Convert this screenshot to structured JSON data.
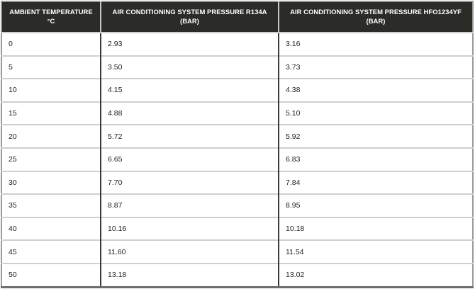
{
  "table": {
    "headers": [
      "AMBIENT TEMPERATURE °C",
      "AIR CONDITIONING SYSTEM PRESSURE R134A (BAR)",
      "AIR CONDITIONING SYSTEM PRESSURE HFO1234YF (BAR)"
    ],
    "rows": [
      [
        "0",
        "2.93",
        "3.16"
      ],
      [
        "5",
        "3.50",
        "3.73"
      ],
      [
        "10",
        "4.15",
        "4.38"
      ],
      [
        "15",
        "4.88",
        "5.10"
      ],
      [
        "20",
        "5.72",
        "5.92"
      ],
      [
        "25",
        "6.65",
        "6.83"
      ],
      [
        "30",
        "7.70",
        "7.84"
      ],
      [
        "35",
        "8.87",
        "8.95"
      ],
      [
        "40",
        "10.16",
        "10.18"
      ],
      [
        "45",
        "11.60",
        "11.54"
      ],
      [
        "50",
        "13.18",
        "13.02"
      ]
    ]
  },
  "colors": {
    "header_bg": "#2b2b27",
    "header_text": "#ffffff"
  }
}
